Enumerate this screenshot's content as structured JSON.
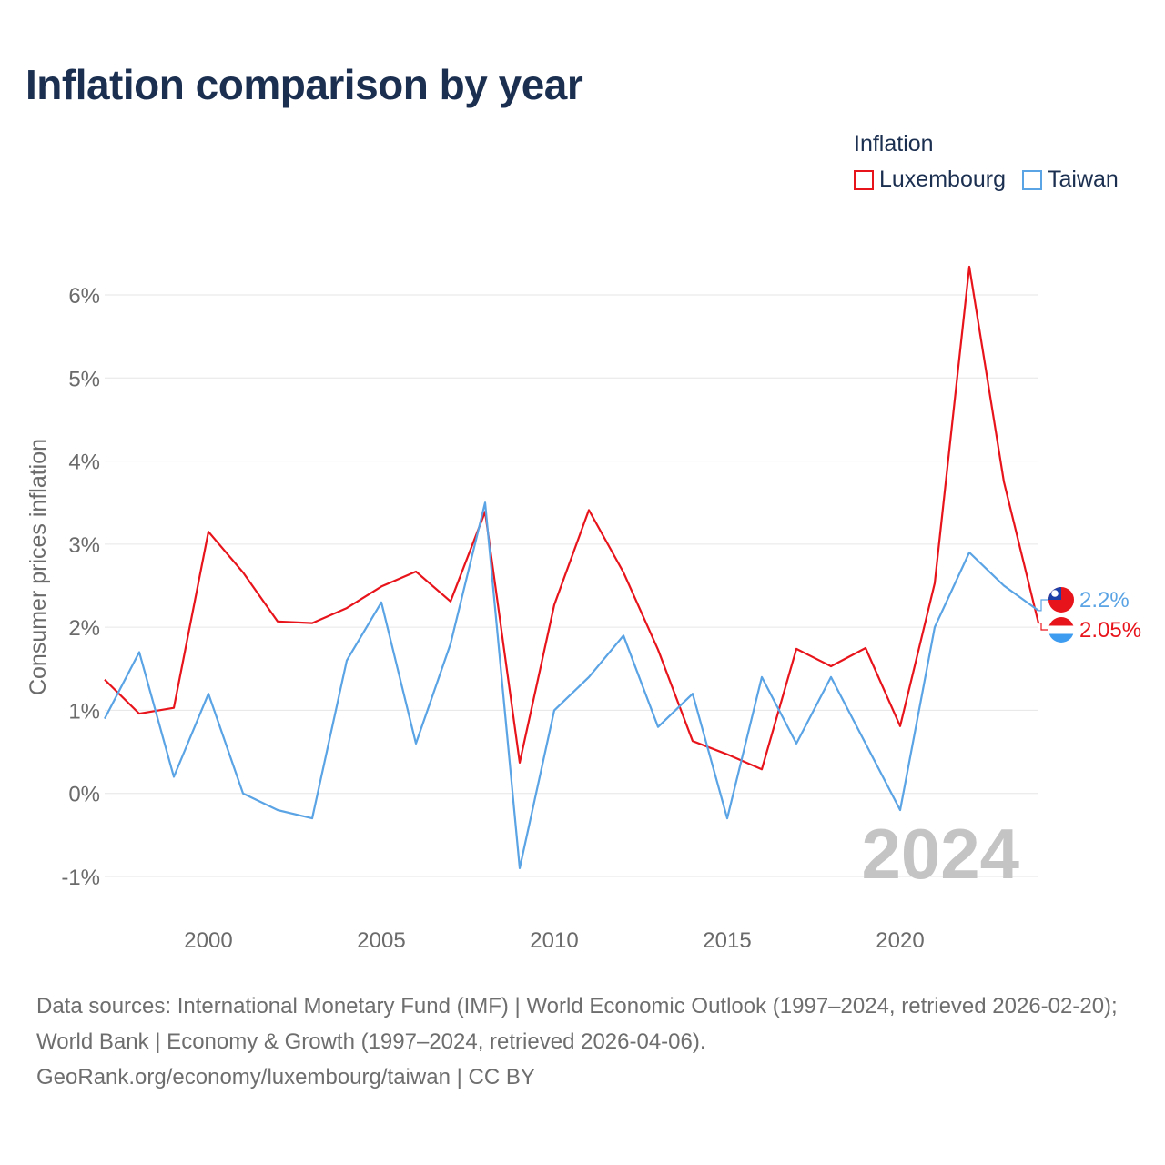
{
  "header": {
    "title": "Inflation comparison by year"
  },
  "legend": {
    "title": "Inflation",
    "items": [
      {
        "label": "Luxembourg",
        "color": "#e8141c"
      },
      {
        "label": "Taiwan",
        "color": "#5aa3e4"
      }
    ]
  },
  "chart_data": {
    "type": "line",
    "title": "Inflation comparison by year",
    "xlabel": "",
    "ylabel": "Consumer prices inflation",
    "x": [
      1997,
      1998,
      1999,
      2000,
      2001,
      2002,
      2003,
      2004,
      2005,
      2006,
      2007,
      2008,
      2009,
      2010,
      2011,
      2012,
      2013,
      2014,
      2015,
      2016,
      2017,
      2018,
      2019,
      2020,
      2021,
      2022,
      2023,
      2024
    ],
    "xlim": [
      1997,
      2024
    ],
    "ylim": [
      -1,
      6
    ],
    "x_ticks": [
      "2000",
      "2005",
      "2010",
      "2015",
      "2020"
    ],
    "y_ticks": [
      "-1%",
      "0%",
      "1%",
      "2%",
      "3%",
      "4%",
      "5%",
      "6%"
    ],
    "grid": true,
    "year_watermark": "2024",
    "series": [
      {
        "name": "Luxembourg",
        "color": "#e8141c",
        "end_label": "2.05%",
        "values": [
          1.37,
          0.96,
          1.03,
          3.15,
          2.66,
          2.07,
          2.05,
          2.23,
          2.49,
          2.67,
          2.31,
          3.39,
          0.37,
          2.27,
          3.41,
          2.66,
          1.73,
          0.63,
          0.47,
          0.29,
          1.74,
          1.53,
          1.75,
          0.81,
          2.53,
          6.34,
          3.75,
          2.05
        ]
      },
      {
        "name": "Taiwan",
        "color": "#5aa3e4",
        "end_label": "2.2%",
        "values": [
          0.9,
          1.7,
          0.2,
          1.2,
          0.0,
          -0.2,
          -0.3,
          1.6,
          2.3,
          0.6,
          1.8,
          3.5,
          -0.9,
          1.0,
          1.4,
          1.9,
          0.8,
          1.2,
          -0.3,
          1.4,
          0.6,
          1.4,
          0.6,
          -0.2,
          2.0,
          2.9,
          2.5,
          2.2
        ]
      }
    ]
  },
  "footer": {
    "source_line1": "Data sources: International Monetary Fund (IMF) | World Economic Outlook (1997–2024, retrieved 2026-02-20); World Bank | Economy & Growth (1997–2024, retrieved 2026-04-06).",
    "source_line2": "GeoRank.org/economy/luxembourg/taiwan | CC BY"
  }
}
